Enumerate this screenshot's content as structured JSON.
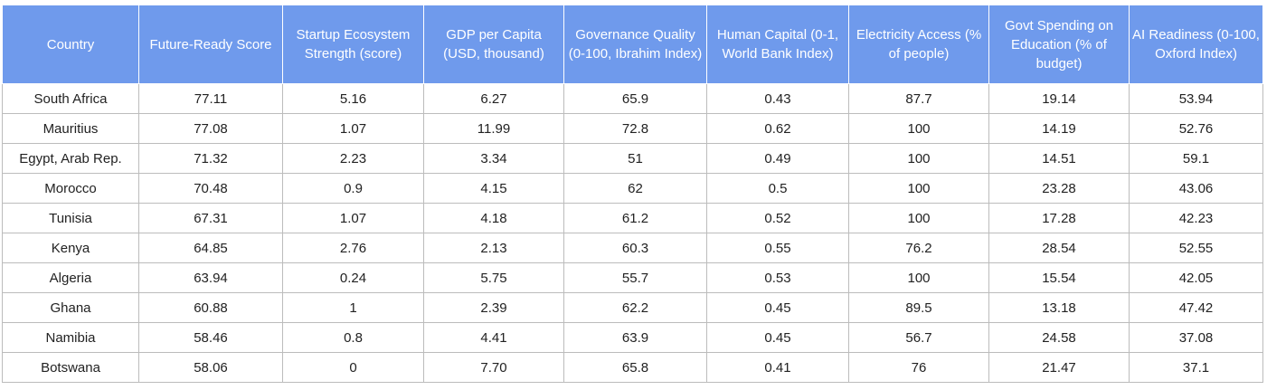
{
  "chart_data": {
    "type": "table",
    "title_fragment": "...y...",
    "columns": [
      "Country",
      "Future-Ready Score",
      "Startup Ecosystem Strength (score)",
      "GDP per Capita (USD, thousand)",
      "Governance Quality (0-100, Ibrahim Index)",
      "Human Capital (0-1, World Bank Index)",
      "Electricity Access (% of people)",
      "Govt Spending on Education (% of budget)",
      "AI Readiness (0-100, Oxford Index)"
    ],
    "rows": [
      [
        "South Africa",
        "77.11",
        "5.16",
        "6.27",
        "65.9",
        "0.43",
        "87.7",
        "19.14",
        "53.94"
      ],
      [
        "Mauritius",
        "77.08",
        "1.07",
        "11.99",
        "72.8",
        "0.62",
        "100",
        "14.19",
        "52.76"
      ],
      [
        "Egypt, Arab Rep.",
        "71.32",
        "2.23",
        "3.34",
        "51",
        "0.49",
        "100",
        "14.51",
        "59.1"
      ],
      [
        "Morocco",
        "70.48",
        "0.9",
        "4.15",
        "62",
        "0.5",
        "100",
        "23.28",
        "43.06"
      ],
      [
        "Tunisia",
        "67.31",
        "1.07",
        "4.18",
        "61.2",
        "0.52",
        "100",
        "17.28",
        "42.23"
      ],
      [
        "Kenya",
        "64.85",
        "2.76",
        "2.13",
        "60.3",
        "0.55",
        "76.2",
        "28.54",
        "52.55"
      ],
      [
        "Algeria",
        "63.94",
        "0.24",
        "5.75",
        "55.7",
        "0.53",
        "100",
        "15.54",
        "42.05"
      ],
      [
        "Ghana",
        "60.88",
        "1",
        "2.39",
        "62.2",
        "0.45",
        "89.5",
        "13.18",
        "47.42"
      ],
      [
        "Namibia",
        "58.46",
        "0.8",
        "4.41",
        "63.9",
        "0.45",
        "56.7",
        "24.58",
        "37.08"
      ],
      [
        "Botswana",
        "58.06",
        "0",
        "7.70",
        "65.8",
        "0.41",
        "76",
        "21.47",
        "37.1"
      ]
    ]
  },
  "colors": {
    "header_bg": "#6f9aec",
    "header_text": "#ffffff",
    "border": "#bcbcbc"
  }
}
